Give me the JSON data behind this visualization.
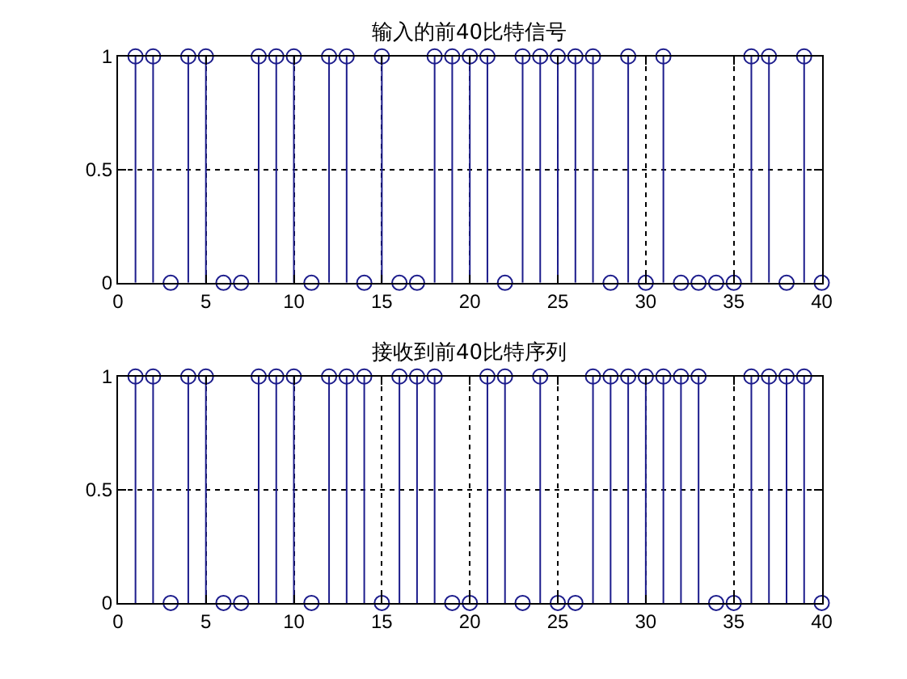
{
  "chart_data": [
    {
      "type": "lollipop",
      "title": "输入的前40比特信号",
      "x": [
        1,
        2,
        3,
        4,
        5,
        6,
        7,
        8,
        9,
        10,
        11,
        12,
        13,
        14,
        15,
        16,
        17,
        18,
        19,
        20,
        21,
        22,
        23,
        24,
        25,
        26,
        27,
        28,
        29,
        30,
        31,
        32,
        33,
        34,
        35,
        36,
        37,
        38,
        39,
        40
      ],
      "values": [
        1,
        1,
        0,
        1,
        1,
        0,
        0,
        1,
        1,
        1,
        0,
        1,
        1,
        0,
        1,
        0,
        0,
        1,
        1,
        1,
        1,
        0,
        1,
        1,
        1,
        1,
        1,
        0,
        1,
        0,
        1,
        0,
        0,
        0,
        0,
        1,
        1,
        0,
        1,
        0
      ],
      "color": "#1c1c8c",
      "marker": "circle",
      "xlim": [
        0,
        40
      ],
      "ylim": [
        0,
        1
      ],
      "xticks": [
        0,
        5,
        10,
        15,
        20,
        25,
        30,
        35,
        40
      ],
      "yticks": [
        0,
        0.5,
        1
      ],
      "grid": true
    },
    {
      "type": "lollipop",
      "title": "接收到前40比特序列",
      "x": [
        1,
        2,
        3,
        4,
        5,
        6,
        7,
        8,
        9,
        10,
        11,
        12,
        13,
        14,
        15,
        16,
        17,
        18,
        19,
        20,
        21,
        22,
        23,
        24,
        25,
        26,
        27,
        28,
        29,
        30,
        31,
        32,
        33,
        34,
        35,
        36,
        37,
        38,
        39,
        40
      ],
      "values": [
        1,
        1,
        0,
        1,
        1,
        0,
        0,
        1,
        1,
        1,
        0,
        1,
        1,
        1,
        0,
        1,
        1,
        1,
        0,
        0,
        1,
        1,
        0,
        1,
        0,
        0,
        1,
        1,
        1,
        1,
        1,
        1,
        1,
        0,
        0,
        1,
        1,
        1,
        1,
        0
      ],
      "color": "#1c1c8c",
      "marker": "circle",
      "xlim": [
        0,
        40
      ],
      "ylim": [
        0,
        1
      ],
      "xticks": [
        0,
        5,
        10,
        15,
        20,
        25,
        30,
        35,
        40
      ],
      "yticks": [
        0,
        0.5,
        1
      ],
      "grid": true
    }
  ]
}
